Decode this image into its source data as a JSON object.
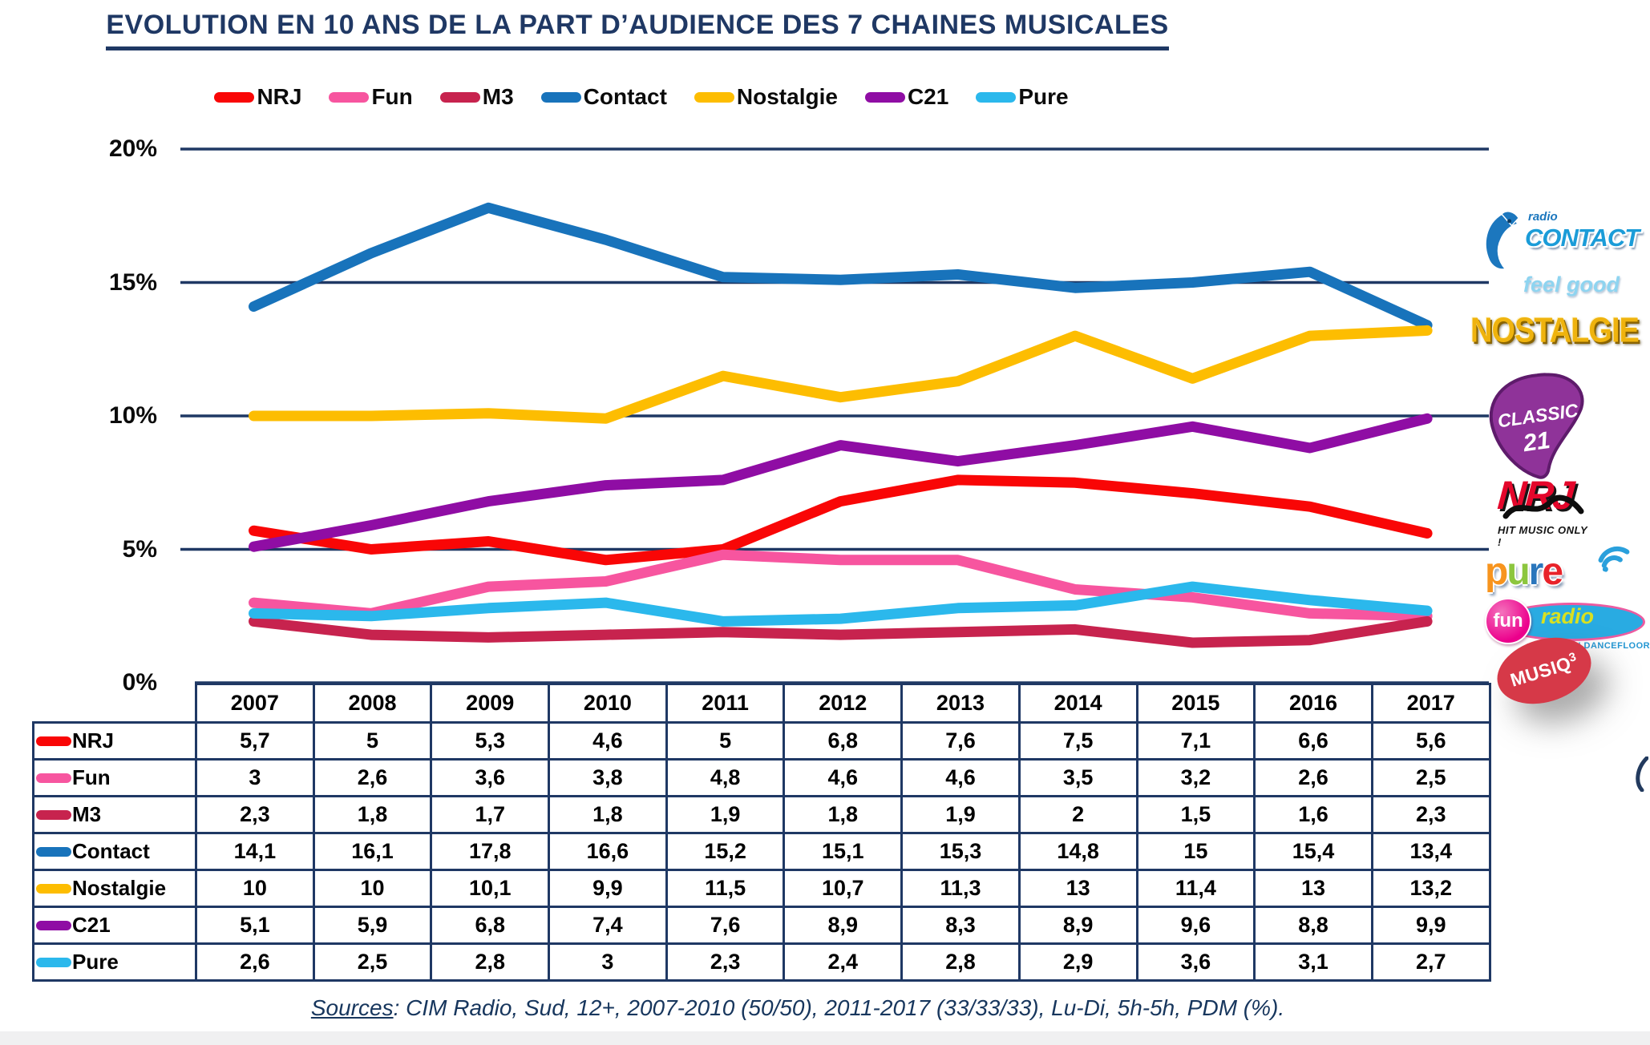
{
  "title": "EVOLUTION EN 10 ANS DE LA PART D’AUDIENCE DES 7 CHAINES MUSICALES",
  "chart_data": {
    "type": "line",
    "x": [
      2007,
      2008,
      2009,
      2010,
      2011,
      2012,
      2013,
      2014,
      2015,
      2016,
      2017
    ],
    "series": [
      {
        "name": "NRJ",
        "color": "#F90606",
        "values": [
          5.7,
          5,
          5.3,
          4.6,
          5,
          6.8,
          7.6,
          7.5,
          7.1,
          6.6,
          5.6
        ]
      },
      {
        "name": "Fun",
        "color": "#F7559F",
        "values": [
          3,
          2.6,
          3.6,
          3.8,
          4.8,
          4.6,
          4.6,
          3.5,
          3.2,
          2.6,
          2.5
        ]
      },
      {
        "name": "M3",
        "color": "#C7234E",
        "values": [
          2.3,
          1.8,
          1.7,
          1.8,
          1.9,
          1.8,
          1.9,
          2,
          1.5,
          1.6,
          2.3
        ]
      },
      {
        "name": "Contact",
        "color": "#1873BB",
        "values": [
          14.1,
          16.1,
          17.8,
          16.6,
          15.2,
          15.1,
          15.3,
          14.8,
          15,
          15.4,
          13.4
        ]
      },
      {
        "name": "Nostalgie",
        "color": "#FDBD01",
        "values": [
          10,
          10,
          10.1,
          9.9,
          11.5,
          10.7,
          11.3,
          13,
          11.4,
          13,
          13.2
        ]
      },
      {
        "name": "C21",
        "color": "#8F0DA4",
        "values": [
          5.1,
          5.9,
          6.8,
          7.4,
          7.6,
          8.9,
          8.3,
          8.9,
          9.6,
          8.8,
          9.9
        ]
      },
      {
        "name": "Pure",
        "color": "#2BB8EC",
        "values": [
          2.6,
          2.5,
          2.8,
          3,
          2.3,
          2.4,
          2.8,
          2.9,
          3.6,
          3.1,
          2.7
        ]
      }
    ],
    "yticks": [
      {
        "label": "20%",
        "value": 20
      },
      {
        "label": "15%",
        "value": 15
      },
      {
        "label": "10%",
        "value": 10
      },
      {
        "label": "5%",
        "value": 5
      },
      {
        "label": "0%",
        "value": 0
      }
    ],
    "ylim": [
      0,
      20
    ],
    "grid": true,
    "legend_position": "top",
    "decimal_separator": ","
  },
  "source_note": {
    "label": "Sources",
    "text": ": CIM Radio, Sud, 12+, 2007-2010 (50/50), 2011-2017 (33/33/33), Lu-Di, 5h-5h, PDM (%)."
  },
  "logos": {
    "contact": {
      "radio": "radio",
      "name": "CONTACT",
      "tagline": "feel good"
    },
    "nostalgie": {
      "name": "NOSTALGIE"
    },
    "classic21": {
      "line1": "CLASSIC",
      "line2": "21"
    },
    "nrj": {
      "name": "NRJ",
      "tagline": "HIT MUSIC ONLY !"
    },
    "pure": {
      "letters": [
        {
          "ch": "p",
          "color": "#F7941E"
        },
        {
          "ch": "u",
          "color": "#8CC63E"
        },
        {
          "ch": "r",
          "color": "#2A76BC"
        },
        {
          "ch": "e",
          "color": "#E8232A"
        }
      ]
    },
    "fun": {
      "name": "fun",
      "radio": "radio",
      "tagline": "LE SON DANCEFLOOR"
    },
    "musiq3": {
      "name": "MUSIQ",
      "sup": "3"
    }
  }
}
